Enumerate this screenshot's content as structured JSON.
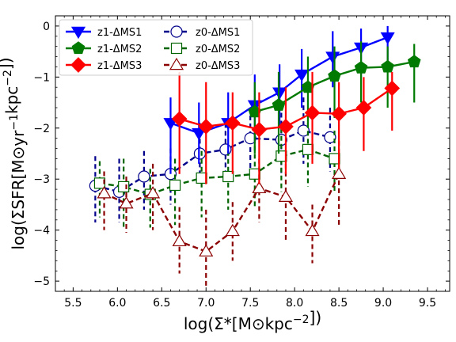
{
  "chart_data": {
    "type": "line",
    "xlabel": "log(Σ*[M⊙kpc⁻²])",
    "ylabel": "log(ΣSFR[M⊙yr⁻¹kpc⁻²])",
    "xlim": [
      5.3,
      9.75
    ],
    "ylim": [
      -5.2,
      0.2
    ],
    "xticks": [
      5.5,
      6.0,
      6.5,
      7.0,
      7.5,
      8.0,
      8.5,
      9.0,
      9.5
    ],
    "xtick_labels": [
      "5.5",
      "6.0",
      "6.5",
      "7.0",
      "7.5",
      "8.0",
      "8.5",
      "9.0",
      "9.5"
    ],
    "yticks": [
      0,
      -1,
      -2,
      -3,
      -4,
      -5
    ],
    "ytick_labels": [
      "0",
      "−1",
      "−2",
      "−3",
      "−4",
      "−5"
    ],
    "legend_position": "top-left",
    "series": [
      {
        "name": "z1-ΔMS1",
        "color": "#0000ff",
        "marker": "triangle-down",
        "filled": true,
        "linestyle": "solid",
        "x": [
          6.6,
          6.92,
          7.25,
          7.55,
          7.83,
          8.08,
          8.43,
          8.75,
          9.05
        ],
        "y": [
          -1.9,
          -2.1,
          -1.9,
          -1.55,
          -1.3,
          -0.95,
          -0.6,
          -0.42,
          -0.22
        ],
        "yerr_low": [
          -2.9,
          -2.7,
          -2.5,
          -2.3,
          -2.0,
          -1.6,
          -1.2,
          -1.0,
          -0.7
        ],
        "yerr_high": [
          -1.4,
          -1.5,
          -1.3,
          -0.95,
          -0.75,
          -0.45,
          -0.1,
          -0.05,
          0.0
        ]
      },
      {
        "name": "z1-ΔMS2",
        "color": "#007a00",
        "marker": "pentagon",
        "filled": true,
        "linestyle": "solid",
        "x": [
          7.55,
          7.82,
          8.15,
          8.45,
          8.75,
          9.05,
          9.35
        ],
        "y": [
          -1.68,
          -1.55,
          -1.2,
          -0.98,
          -0.82,
          -0.8,
          -0.7
        ],
        "yerr_low": [
          -2.5,
          -2.5,
          -2.0,
          -1.8,
          -1.5,
          -1.6,
          -1.5
        ],
        "yerr_high": [
          -1.1,
          -0.9,
          -0.6,
          -0.4,
          -0.3,
          -0.4,
          -0.35
        ]
      },
      {
        "name": "z1-ΔMS3",
        "color": "#ff0000",
        "marker": "diamond",
        "filled": true,
        "linestyle": "solid",
        "x": [
          6.7,
          7.0,
          7.3,
          7.6,
          7.9,
          8.2,
          8.5,
          8.78,
          9.1
        ],
        "y": [
          -1.82,
          -1.97,
          -1.9,
          -2.03,
          -1.97,
          -1.7,
          -1.72,
          -1.6,
          -1.22
        ],
        "yerr_low": [
          -2.9,
          -3.1,
          -2.9,
          -3.1,
          -2.9,
          -2.7,
          -2.8,
          -2.45,
          -2.05
        ],
        "yerr_high": [
          -0.9,
          -1.1,
          -1.3,
          -1.3,
          -1.2,
          -0.9,
          -1.1,
          -1.0,
          -0.9
        ]
      },
      {
        "name": "z0-ΔMS1",
        "color": "#00008b",
        "marker": "circle",
        "filled": false,
        "linestyle": "dashed",
        "x": [
          5.75,
          6.02,
          6.3,
          6.6,
          6.93,
          7.22,
          7.5,
          7.85,
          8.1,
          8.4
        ],
        "y": [
          -3.13,
          -3.25,
          -2.95,
          -2.9,
          -2.5,
          -2.42,
          -2.2,
          -2.23,
          -2.05,
          -2.18
        ],
        "yerr_low": [
          -3.85,
          -3.85,
          -3.6,
          -3.5,
          -3.1,
          -2.95,
          -2.8,
          -2.9,
          -2.7,
          -2.85
        ],
        "yerr_high": [
          -2.55,
          -2.6,
          -2.45,
          -2.4,
          -1.9,
          -1.9,
          -1.6,
          -1.7,
          -1.4,
          -1.6
        ]
      },
      {
        "name": "z0-ΔMS2",
        "color": "#006400",
        "marker": "square",
        "filled": false,
        "linestyle": "dashed",
        "x": [
          5.8,
          6.07,
          6.37,
          6.65,
          6.95,
          7.25,
          7.55,
          7.85,
          8.15,
          8.45
        ],
        "y": [
          -3.08,
          -3.15,
          -3.3,
          -3.12,
          -2.98,
          -2.95,
          -2.9,
          -2.55,
          -2.42,
          -2.6
        ],
        "yerr_low": [
          -3.75,
          -3.95,
          -3.95,
          -3.9,
          -3.75,
          -3.6,
          -3.55,
          -3.25,
          -3.15,
          -3.25
        ],
        "yerr_high": [
          -2.65,
          -2.6,
          -2.8,
          -2.6,
          -2.45,
          -2.45,
          -2.35,
          -2.0,
          -1.9,
          -2.05
        ]
      },
      {
        "name": "z0-ΔMS3",
        "color": "#8b0000",
        "marker": "triangle-up",
        "filled": false,
        "linestyle": "dashed",
        "x": [
          5.85,
          6.1,
          6.4,
          6.7,
          7.0,
          7.3,
          7.6,
          7.9,
          8.2,
          8.5
        ],
        "y": [
          -3.28,
          -3.48,
          -3.28,
          -4.22,
          -4.42,
          -4.02,
          -3.18,
          -3.35,
          -4.02,
          -2.9
        ],
        "yerr_low": [
          -4.0,
          -4.05,
          -4.0,
          -4.85,
          -5.1,
          -4.6,
          -3.85,
          -4.2,
          -4.65,
          -3.95
        ],
        "yerr_high": [
          -2.85,
          -2.95,
          -2.7,
          -3.55,
          -3.6,
          -3.45,
          -2.6,
          -2.7,
          -3.5,
          -2.25
        ]
      }
    ]
  }
}
